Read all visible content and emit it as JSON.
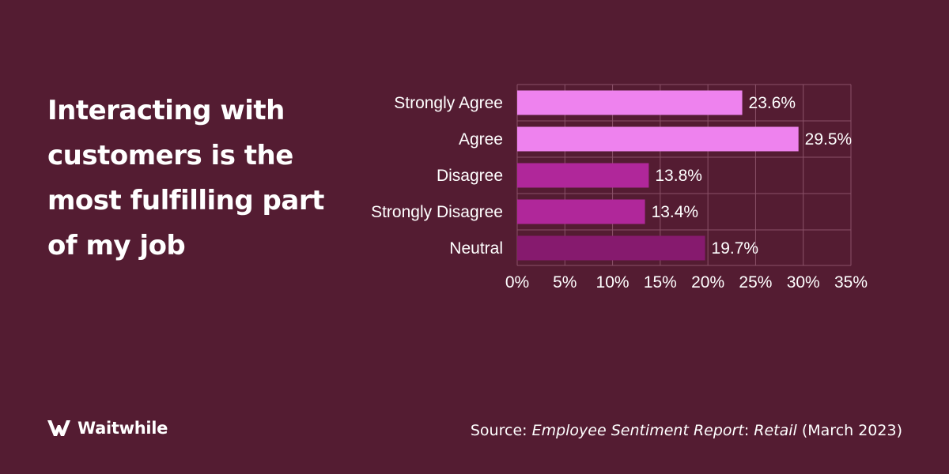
{
  "headline": "Interacting with customers is the most fulfilling part of my job",
  "brand": {
    "name": "Waitwhile",
    "icon": "waitwhile-logo-icon"
  },
  "source": {
    "prefix": "Source: ",
    "title": "Employee Sentiment Report",
    "colon": ":",
    "subtitle": "Retail",
    "date": " (March 2023)"
  },
  "colors": {
    "background": "#541c32",
    "grid": "#8a5168",
    "bar_light": "#ee82ee",
    "bar_mid": "#b0279a",
    "bar_dark": "#861a6e"
  },
  "chart_data": {
    "type": "bar",
    "orientation": "horizontal",
    "categories": [
      "Strongly Agree",
      "Agree",
      "Disagree",
      "Strongly Disagree",
      "Neutral"
    ],
    "values": [
      23.6,
      29.5,
      13.8,
      13.4,
      19.7
    ],
    "value_labels": [
      "23.6%",
      "29.5%",
      "13.8%",
      "13.4%",
      "19.7%"
    ],
    "bar_colors": [
      "#ee82ee",
      "#ee82ee",
      "#b0279a",
      "#b0279a",
      "#861a6e"
    ],
    "xlim": [
      0,
      35
    ],
    "xticks": [
      0,
      5,
      10,
      15,
      20,
      25,
      30,
      35
    ],
    "xtick_labels": [
      "0%",
      "5%",
      "10%",
      "15%",
      "20%",
      "25%",
      "30%",
      "35%"
    ],
    "grid": true,
    "legend": "none"
  }
}
